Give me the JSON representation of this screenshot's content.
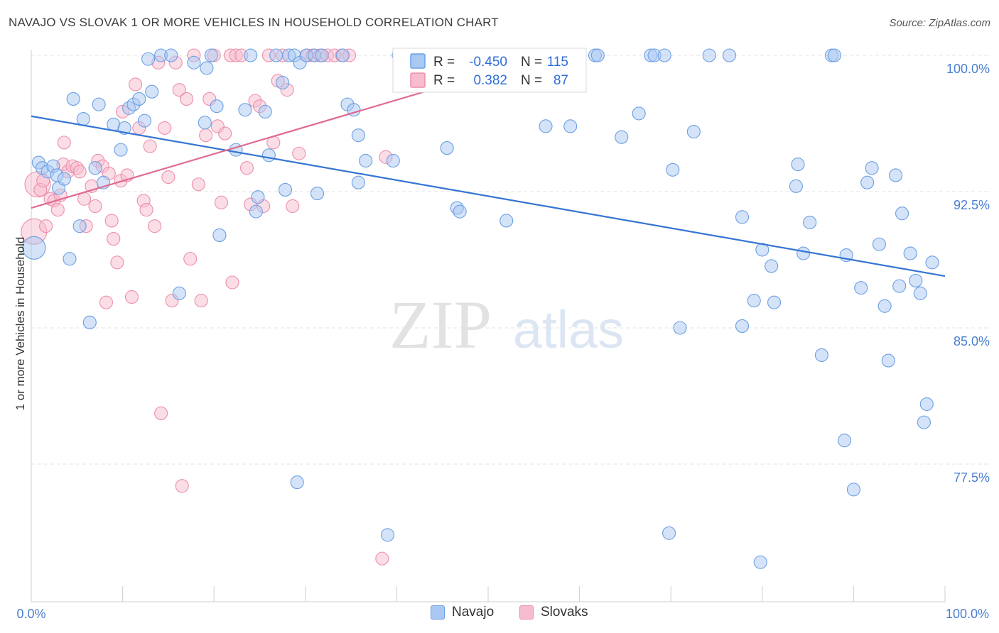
{
  "title": "NAVAJO VS SLOVAK 1 OR MORE VEHICLES IN HOUSEHOLD CORRELATION CHART",
  "source": "Source: ZipAtlas.com",
  "watermark": {
    "zip": "ZIP",
    "atlas": "atlas"
  },
  "colors": {
    "navajo_fill": "#a9c8f2",
    "navajo_stroke": "#6b9fe4",
    "navajo_line": "#3575d3",
    "slovak_fill": "#f7bccd",
    "slovak_stroke": "#ec8fab",
    "slovak_line": "#e06a92",
    "tick_text": "#4a7fd1",
    "grid": "#e3e3e3"
  },
  "legend": {
    "rows": [
      {
        "r_label": "R =",
        "r_value": "-0.450",
        "n_label": "N =",
        "n_value": "115"
      },
      {
        "r_label": "R =",
        "r_value": "0.382",
        "n_label": "N =",
        "n_value": "87"
      }
    ]
  },
  "bottom_legend": {
    "navajo": "Navajo",
    "slovaks": "Slovaks"
  },
  "chart_data": {
    "type": "scatter",
    "title": "NAVAJO VS SLOVAK 1 OR MORE VEHICLES IN HOUSEHOLD CORRELATION CHART",
    "xlabel": "",
    "ylabel": "1 or more Vehicles in Household",
    "xlim": [
      0,
      100
    ],
    "ylim": [
      70.5,
      100.8
    ],
    "x_tick_labels": [
      "0.0%",
      "100.0%"
    ],
    "y_ticks": [
      100.0,
      92.5,
      85.0,
      77.5
    ],
    "y_tick_labels": [
      "100.0%",
      "92.5%",
      "85.0%",
      "77.5%"
    ],
    "grid": true,
    "legend_position": "top-center",
    "series": [
      {
        "name": "Navajo",
        "R": -0.45,
        "N": 115,
        "trend": {
          "x": [
            0,
            100
          ],
          "y": [
            96.65,
            87.85
          ]
        },
        "points": [
          [
            0.3,
            89.4
          ],
          [
            0.8,
            94.1
          ],
          [
            1.2,
            93.8
          ],
          [
            1.8,
            93.6
          ],
          [
            2.4,
            93.9
          ],
          [
            2.8,
            93.4
          ],
          [
            3.0,
            92.7
          ],
          [
            3.6,
            93.2
          ],
          [
            4.2,
            88.8
          ],
          [
            4.6,
            97.6
          ],
          [
            5.3,
            90.6
          ],
          [
            5.7,
            96.5
          ],
          [
            6.4,
            85.3
          ],
          [
            7.0,
            93.8
          ],
          [
            7.4,
            97.3
          ],
          [
            7.9,
            93.0
          ],
          [
            9.0,
            96.2
          ],
          [
            9.8,
            94.8
          ],
          [
            10.2,
            96.0
          ],
          [
            10.7,
            97.1
          ],
          [
            11.2,
            97.3
          ],
          [
            11.8,
            97.6
          ],
          [
            12.4,
            96.4
          ],
          [
            12.8,
            99.8
          ],
          [
            13.2,
            98.0
          ],
          [
            14.2,
            100.0
          ],
          [
            15.3,
            100.0
          ],
          [
            16.2,
            86.9
          ],
          [
            17.8,
            99.6
          ],
          [
            19.2,
            99.3
          ],
          [
            19.0,
            96.3
          ],
          [
            19.7,
            100.0
          ],
          [
            20.3,
            97.2
          ],
          [
            20.6,
            90.1
          ],
          [
            22.4,
            94.8
          ],
          [
            23.4,
            97.0
          ],
          [
            24.0,
            100.0
          ],
          [
            24.6,
            91.4
          ],
          [
            24.8,
            92.2
          ],
          [
            25.6,
            96.9
          ],
          [
            26.0,
            94.5
          ],
          [
            26.8,
            100.0
          ],
          [
            27.5,
            98.5
          ],
          [
            27.8,
            92.6
          ],
          [
            28.2,
            100.0
          ],
          [
            28.8,
            100.0
          ],
          [
            29.4,
            99.6
          ],
          [
            30.1,
            100.0
          ],
          [
            31.0,
            100.0
          ],
          [
            31.8,
            100.0
          ],
          [
            29.1,
            76.5
          ],
          [
            31.3,
            92.4
          ],
          [
            34.1,
            100.0
          ],
          [
            34.6,
            97.3
          ],
          [
            35.3,
            97.0
          ],
          [
            35.8,
            93.0
          ],
          [
            35.8,
            95.6
          ],
          [
            36.6,
            94.2
          ],
          [
            39.0,
            73.6
          ],
          [
            39.6,
            94.2
          ],
          [
            40.2,
            100.0
          ],
          [
            40.8,
            100.0
          ],
          [
            41.5,
            100.0
          ],
          [
            42.2,
            100.0
          ],
          [
            45.5,
            94.9
          ],
          [
            46.6,
            91.6
          ],
          [
            46.9,
            91.4
          ],
          [
            50.1,
            100.0
          ],
          [
            52.0,
            90.9
          ],
          [
            53.7,
            100.0
          ],
          [
            56.3,
            96.1
          ],
          [
            58.0,
            100.0
          ],
          [
            58.8,
            100.0
          ],
          [
            59.7,
            100.0
          ],
          [
            59.0,
            96.1
          ],
          [
            61.7,
            100.0
          ],
          [
            62.0,
            100.0
          ],
          [
            64.6,
            95.5
          ],
          [
            66.5,
            96.8
          ],
          [
            67.8,
            100.0
          ],
          [
            68.2,
            100.0
          ],
          [
            69.3,
            100.0
          ],
          [
            69.8,
            73.7
          ],
          [
            70.2,
            93.7
          ],
          [
            71.0,
            85.0
          ],
          [
            72.5,
            95.8
          ],
          [
            74.2,
            100.0
          ],
          [
            76.4,
            100.0
          ],
          [
            77.8,
            91.1
          ],
          [
            77.8,
            85.1
          ],
          [
            79.1,
            86.5
          ],
          [
            79.8,
            72.1
          ],
          [
            80.0,
            89.3
          ],
          [
            81.3,
            86.4
          ],
          [
            81.0,
            88.4
          ],
          [
            83.7,
            92.8
          ],
          [
            83.9,
            94.0
          ],
          [
            84.5,
            89.1
          ],
          [
            85.2,
            90.8
          ],
          [
            87.6,
            100.0
          ],
          [
            86.5,
            83.5
          ],
          [
            87.9,
            100.0
          ],
          [
            89.0,
            78.8
          ],
          [
            89.2,
            89.0
          ],
          [
            90.0,
            76.1
          ],
          [
            90.8,
            87.2
          ],
          [
            91.5,
            93.0
          ],
          [
            92.0,
            93.8
          ],
          [
            92.8,
            89.6
          ],
          [
            93.4,
            86.2
          ],
          [
            93.8,
            83.2
          ],
          [
            94.6,
            93.4
          ],
          [
            95.0,
            87.3
          ],
          [
            95.3,
            91.3
          ],
          [
            96.2,
            89.1
          ],
          [
            96.8,
            87.6
          ],
          [
            97.3,
            86.9
          ],
          [
            97.7,
            79.8
          ],
          [
            98.0,
            80.8
          ],
          [
            98.6,
            88.6
          ]
        ]
      },
      {
        "name": "Slovaks",
        "R": 0.382,
        "N": 87,
        "trend": {
          "x": [
            0,
            56.5
          ],
          "y": [
            91.6,
            100.0
          ]
        },
        "points": [
          [
            0.3,
            90.3
          ],
          [
            0.7,
            92.9
          ],
          [
            1.0,
            92.6
          ],
          [
            1.3,
            93.1
          ],
          [
            1.6,
            90.6
          ],
          [
            2.1,
            92.1
          ],
          [
            2.5,
            92.0
          ],
          [
            2.9,
            91.5
          ],
          [
            3.2,
            92.3
          ],
          [
            3.5,
            94.0
          ],
          [
            3.6,
            95.2
          ],
          [
            4.0,
            93.6
          ],
          [
            4.5,
            93.9
          ],
          [
            5.0,
            93.8
          ],
          [
            5.3,
            93.6
          ],
          [
            5.8,
            92.1
          ],
          [
            6.0,
            90.6
          ],
          [
            6.6,
            92.8
          ],
          [
            7.0,
            91.7
          ],
          [
            7.3,
            94.2
          ],
          [
            7.8,
            93.9
          ],
          [
            8.2,
            86.4
          ],
          [
            8.5,
            93.5
          ],
          [
            8.8,
            90.9
          ],
          [
            9.0,
            89.9
          ],
          [
            9.4,
            88.6
          ],
          [
            9.8,
            93.1
          ],
          [
            10.0,
            96.9
          ],
          [
            10.5,
            93.4
          ],
          [
            11.0,
            86.7
          ],
          [
            11.4,
            98.4
          ],
          [
            11.8,
            96.0
          ],
          [
            12.3,
            92.0
          ],
          [
            12.6,
            91.5
          ],
          [
            13.0,
            95.0
          ],
          [
            13.5,
            90.6
          ],
          [
            13.9,
            99.6
          ],
          [
            14.2,
            80.3
          ],
          [
            14.6,
            96.0
          ],
          [
            15.0,
            93.3
          ],
          [
            15.4,
            86.5
          ],
          [
            15.8,
            99.6
          ],
          [
            16.2,
            98.1
          ],
          [
            16.5,
            76.3
          ],
          [
            17.0,
            97.6
          ],
          [
            17.4,
            88.8
          ],
          [
            17.8,
            100.0
          ],
          [
            18.3,
            92.9
          ],
          [
            18.6,
            86.5
          ],
          [
            19.1,
            95.6
          ],
          [
            19.5,
            97.6
          ],
          [
            20.0,
            100.0
          ],
          [
            20.4,
            96.1
          ],
          [
            20.8,
            91.9
          ],
          [
            21.2,
            95.7
          ],
          [
            21.8,
            100.0
          ],
          [
            22.0,
            87.5
          ],
          [
            22.4,
            100.0
          ],
          [
            23.0,
            100.0
          ],
          [
            23.6,
            93.8
          ],
          [
            24.0,
            91.8
          ],
          [
            24.5,
            97.5
          ],
          [
            25.0,
            97.2
          ],
          [
            25.4,
            91.7
          ],
          [
            26.0,
            100.0
          ],
          [
            26.5,
            95.2
          ],
          [
            27.0,
            98.6
          ],
          [
            27.5,
            100.0
          ],
          [
            28.0,
            98.1
          ],
          [
            28.6,
            91.7
          ],
          [
            29.3,
            94.6
          ],
          [
            30.2,
            100.0
          ],
          [
            30.8,
            100.0
          ],
          [
            31.6,
            100.0
          ],
          [
            32.4,
            100.0
          ],
          [
            33.2,
            100.0
          ],
          [
            34.0,
            100.0
          ],
          [
            34.8,
            100.0
          ],
          [
            38.4,
            72.3
          ],
          [
            38.8,
            94.4
          ],
          [
            44.6,
            100.0
          ],
          [
            46.3,
            100.0
          ],
          [
            47.6,
            100.0
          ],
          [
            48.6,
            100.0
          ],
          [
            55.6,
            100.0
          ],
          [
            57.0,
            100.0
          ],
          [
            57.6,
            100.0
          ]
        ]
      }
    ]
  }
}
